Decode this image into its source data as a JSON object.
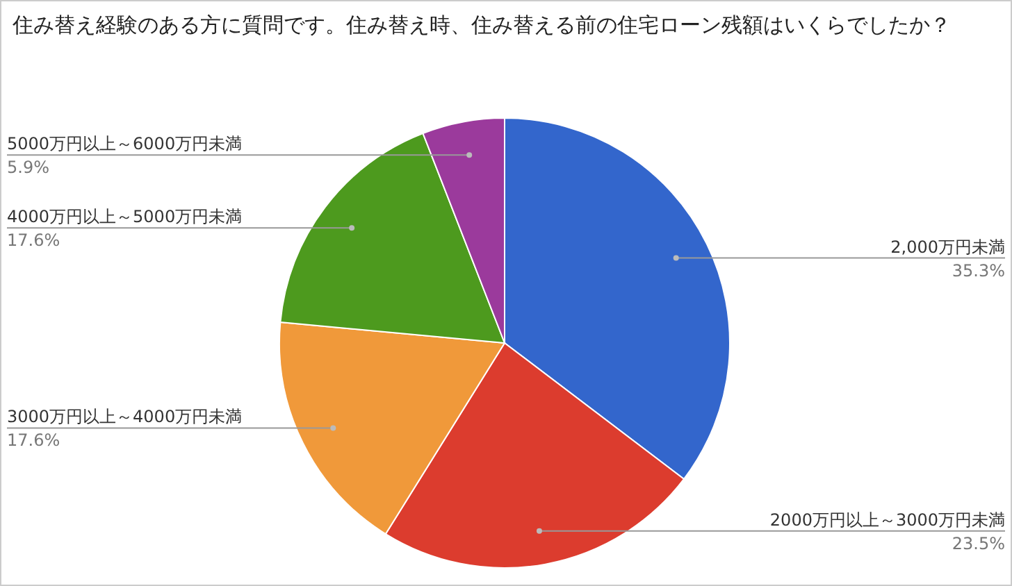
{
  "chart_data": {
    "type": "pie",
    "title": "住み替え経験のある方に質問です。住み替え時、住み替える前の住宅ローン残額はいくらでしたか？",
    "categories": [
      "2,000万円未満",
      "2000万円以上～3000万円未満",
      "3000万円以上～4000万円未満",
      "4000万円以上～5000万円未満",
      "5000万円以上～6000万円未満"
    ],
    "values": [
      35.3,
      23.5,
      17.6,
      17.6,
      5.9
    ],
    "value_labels": [
      "35.3%",
      "23.5%",
      "17.6%",
      "17.6%",
      "5.9%"
    ],
    "colors": [
      "#3366cc",
      "#dc3c2e",
      "#f0993a",
      "#4d9a1e",
      "#9b3a9c"
    ]
  }
}
